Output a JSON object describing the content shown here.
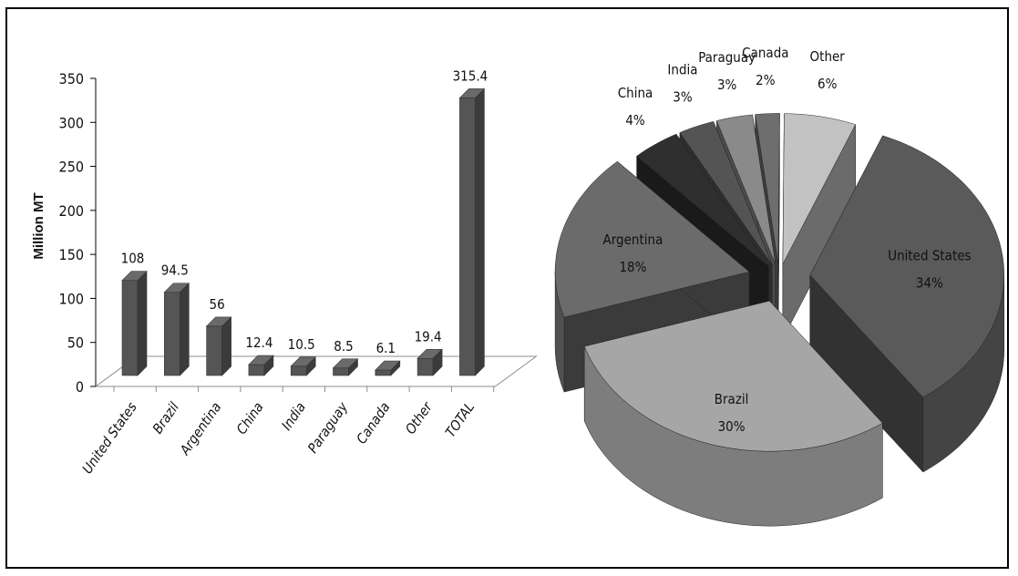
{
  "chart_data": [
    {
      "type": "bar",
      "ylabel": "Million MT",
      "ylim": [
        0,
        350
      ],
      "yticks": [
        0,
        50,
        100,
        150,
        200,
        250,
        300,
        350
      ],
      "categories": [
        "United States",
        "Brazil",
        "Argentina",
        "China",
        "India",
        "Paraguay",
        "Canada",
        "Other",
        "TOTAL"
      ],
      "values": [
        108,
        94.5,
        56,
        12.4,
        10.5,
        8.5,
        6.1,
        19.4,
        315.4
      ],
      "data_labels": [
        "108",
        "94.5",
        "56",
        "12.4",
        "10.5",
        "8.5",
        "6.1",
        "19.4",
        "315.4"
      ],
      "grid": false,
      "style": "3d",
      "bar_color": "#555555"
    },
    {
      "type": "pie",
      "style": "3d-exploded",
      "slices": [
        {
          "label": "United States",
          "value": 34,
          "pct": "34%",
          "color": "#5a5a5a"
        },
        {
          "label": "Brazil",
          "value": 30,
          "pct": "30%",
          "color": "#a6a6a6"
        },
        {
          "label": "Argentina",
          "value": 18,
          "pct": "18%",
          "color": "#6b6b6b"
        },
        {
          "label": "China",
          "value": 4,
          "pct": "4%",
          "color": "#2f2f2f"
        },
        {
          "label": "India",
          "value": 3,
          "pct": "3%",
          "color": "#545454"
        },
        {
          "label": "Paraguay",
          "value": 3,
          "pct": "3%",
          "color": "#8a8a8a"
        },
        {
          "label": "Canada",
          "value": 2,
          "pct": "2%",
          "color": "#6e6e6e"
        },
        {
          "label": "Other",
          "value": 6,
          "pct": "6%",
          "color": "#c2c2c2"
        }
      ]
    }
  ]
}
